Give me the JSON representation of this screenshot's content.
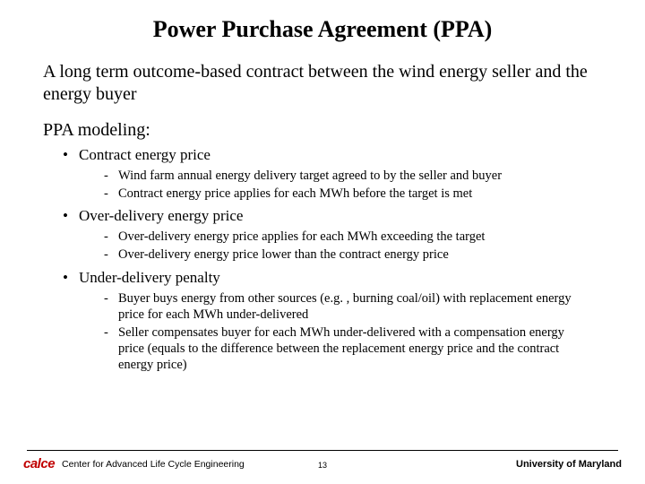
{
  "title": "Power Purchase Agreement (PPA)",
  "subtitle": "A long term outcome-based contract between the wind energy seller and the energy buyer",
  "section_label": "PPA modeling:",
  "items": [
    {
      "label": "Contract energy price",
      "subs": [
        "Wind farm annual energy delivery target agreed to by the seller and buyer",
        "Contract energy price applies for each MWh before the target is met"
      ]
    },
    {
      "label": "Over-delivery energy price",
      "subs": [
        "Over-delivery energy price applies for each MWh exceeding the target",
        "Over-delivery energy price lower than the contract energy price"
      ]
    },
    {
      "label": "Under-delivery penalty",
      "subs": [
        "Buyer buys energy from other sources (e.g. , burning coal/oil) with replacement energy price for each MWh under-delivered",
        "Seller compensates buyer for each MWh under-delivered with a compensation energy price (equals to the difference between the replacement energy price and the contract energy price)"
      ]
    }
  ],
  "footer": {
    "logo_text": "calce",
    "center_left": "Center for Advanced Life Cycle Engineering",
    "page_number": "13",
    "right": "University of Maryland"
  },
  "colors": {
    "background": "#ffffff",
    "text": "#000000",
    "logo": "#c00000",
    "divider": "#000000"
  }
}
